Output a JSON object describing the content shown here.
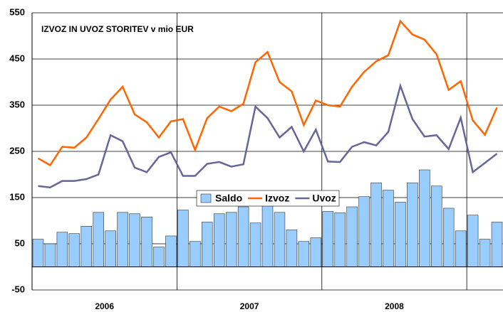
{
  "chart_data": {
    "type": "bar_line",
    "title": "IZVOZ IN UVOZ STORITEV v mio EUR",
    "categories": [
      null,
      null,
      null,
      null,
      null,
      null,
      null,
      null,
      null,
      null,
      null,
      null,
      null,
      null,
      null,
      null,
      null,
      null,
      null,
      null,
      null,
      null,
      null,
      null,
      null,
      null,
      null,
      null,
      null,
      null,
      null,
      null,
      null,
      null,
      null,
      null,
      null,
      null,
      null
    ],
    "x_group_labels": [
      "2006",
      "2007",
      "2008"
    ],
    "series": [
      {
        "name": "Saldo",
        "kind": "bar",
        "color": "#99ccff",
        "values": [
          60,
          50,
          75,
          72,
          88,
          118,
          78,
          118,
          115,
          108,
          43,
          67,
          123,
          55,
          97,
          115,
          118,
          130,
          95,
          143,
          118,
          80,
          55,
          63,
          120,
          117,
          130,
          152,
          182,
          166,
          140,
          182,
          210,
          175,
          127,
          78,
          112,
          60,
          97
        ]
      },
      {
        "name": "Izvoz",
        "kind": "line",
        "color": "#ff6600",
        "values": [
          235,
          220,
          260,
          258,
          280,
          320,
          362,
          390,
          330,
          313,
          280,
          315,
          320,
          253,
          322,
          347,
          337,
          353,
          443,
          465,
          400,
          380,
          307,
          360,
          350,
          347,
          390,
          422,
          445,
          458,
          532,
          503,
          492,
          460,
          383,
          402,
          317,
          286,
          345
        ]
      },
      {
        "name": "Uvoz",
        "kind": "line",
        "color": "#666699",
        "values": [
          175,
          172,
          186,
          186,
          190,
          200,
          285,
          272,
          215,
          205,
          238,
          248,
          197,
          197,
          223,
          227,
          217,
          222,
          347,
          322,
          280,
          303,
          250,
          297,
          228,
          227,
          260,
          270,
          263,
          292,
          392,
          320,
          282,
          285,
          255,
          323,
          205,
          225,
          245
        ]
      }
    ],
    "ylim": [
      -50,
      550
    ],
    "yticks": [
      -50,
      50,
      150,
      250,
      350,
      450,
      550
    ],
    "grid": true
  }
}
